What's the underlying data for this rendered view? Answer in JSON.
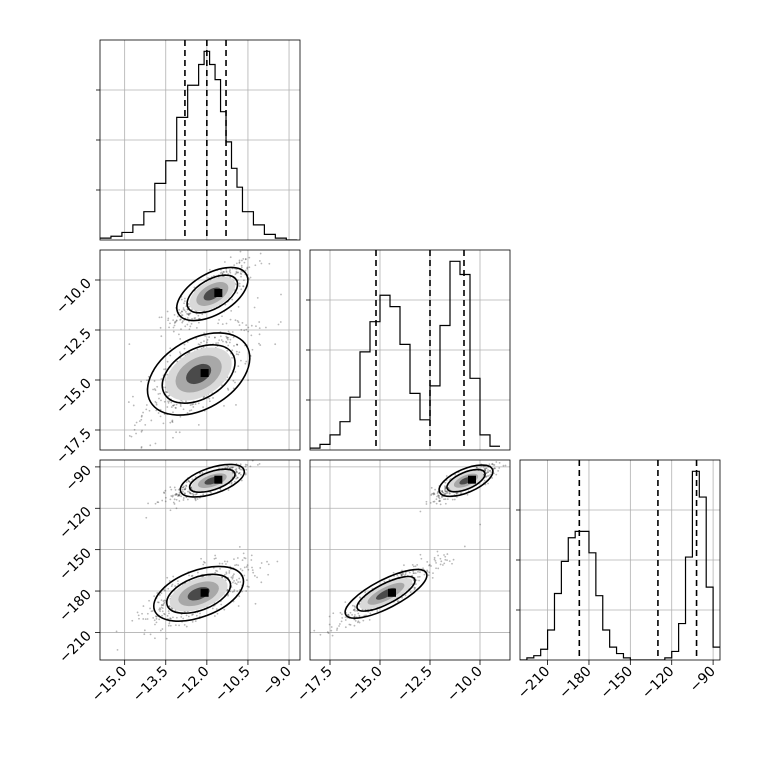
{
  "chart_data": {
    "type": "corner",
    "parameters": [
      {
        "range": [
          -15.9,
          -8.6
        ],
        "ticks": [
          -15.0,
          -13.5,
          -12.0,
          -10.5,
          -9.0
        ],
        "tick_labels": [
          "−15.0",
          "−13.5",
          "−12.0",
          "−10.5",
          "−9.0"
        ],
        "quantiles": [
          -12.8,
          -12.0,
          -11.3
        ],
        "hist": {
          "bins": [
            -15.9,
            -15.5,
            -15.1,
            -14.7,
            -14.3,
            -13.9,
            -13.5,
            -13.1,
            -12.7,
            -12.3,
            -12.1,
            -11.9,
            -11.7,
            -11.5,
            -11.3,
            -11.1,
            -10.9,
            -10.7,
            -10.3,
            -9.9,
            -9.5,
            -9.1,
            -8.7
          ],
          "counts": [
            0.01,
            0.02,
            0.04,
            0.08,
            0.15,
            0.3,
            0.42,
            0.65,
            0.82,
            0.93,
            1.0,
            0.93,
            0.85,
            0.68,
            0.52,
            0.38,
            0.28,
            0.15,
            0.08,
            0.03,
            0.01,
            0.0
          ]
        }
      },
      {
        "range": [
          -18.5,
          -8.5
        ],
        "ticks": [
          -17.5,
          -15.0,
          -12.5,
          -10.0
        ],
        "tick_labels": [
          "−17.5",
          "−15.0",
          "−12.5",
          "−10.0"
        ],
        "quantiles": [
          -15.2,
          -12.5,
          -10.8
        ],
        "hist": {
          "bins": [
            -18.5,
            -18.0,
            -17.5,
            -17.0,
            -16.5,
            -16.0,
            -15.5,
            -15.0,
            -14.5,
            -14.0,
            -13.5,
            -13.0,
            -12.5,
            -12.0,
            -11.5,
            -11.0,
            -10.5,
            -10.0,
            -9.5,
            -9.0
          ],
          "counts": [
            0.01,
            0.03,
            0.08,
            0.15,
            0.28,
            0.52,
            0.68,
            0.82,
            0.76,
            0.56,
            0.3,
            0.16,
            0.34,
            0.66,
            1.0,
            0.93,
            0.38,
            0.08,
            0.02
          ]
        }
      },
      {
        "range": [
          -230,
          -85
        ],
        "ticks": [
          -210,
          -180,
          -150,
          -120,
          -90
        ],
        "tick_labels": [
          "−210",
          "−180",
          "−150",
          "−120",
          "−90"
        ],
        "quantiles": [
          -187,
          -130,
          -102
        ],
        "hist": {
          "bins": [
            -230,
            -225,
            -220,
            -215,
            -210,
            -205,
            -200,
            -195,
            -190,
            -185,
            -180,
            -175,
            -170,
            -165,
            -160,
            -155,
            -150,
            -145,
            -140,
            -135,
            -130,
            -125,
            -120,
            -115,
            -110,
            -105,
            -100,
            -95,
            -90,
            -85
          ],
          "counts": [
            0.0,
            0.01,
            0.02,
            0.05,
            0.14,
            0.31,
            0.46,
            0.57,
            0.6,
            0.6,
            0.5,
            0.3,
            0.14,
            0.06,
            0.03,
            0.01,
            0.0,
            0.0,
            0.0,
            0.0,
            0.0,
            0.01,
            0.04,
            0.17,
            0.48,
            0.88,
            0.76,
            0.34,
            0.06
          ]
        }
      }
    ],
    "modes": [
      {
        "mean": [
          -11.8,
          -10.7,
          -100
        ],
        "sd": [
          0.75,
          0.85,
          7
        ],
        "rho01": 0.8,
        "rho02": 0.8,
        "rho12": 0.85,
        "weight": 0.45
      },
      {
        "mean": [
          -12.3,
          -14.7,
          -182
        ],
        "sd": [
          1.0,
          1.3,
          12
        ],
        "rho01": 0.7,
        "rho02": 0.7,
        "rho12": 0.92,
        "weight": 0.55
      }
    ]
  }
}
